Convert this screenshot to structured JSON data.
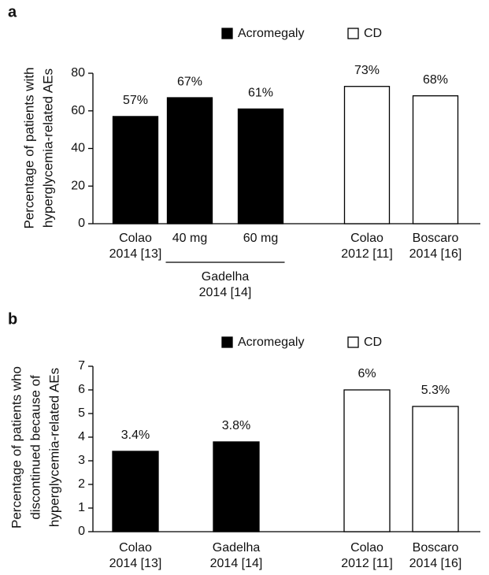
{
  "chart_data": [
    {
      "type": "bar",
      "panel_label": "a",
      "ylabel": [
        "Percentage of patients with",
        "hyperglycemia-related AEs"
      ],
      "categories": [
        [
          "Colao",
          "2014 [13]"
        ],
        [
          "40 mg"
        ],
        [
          "60 mg"
        ],
        [
          "Colao",
          "2012 [11]"
        ],
        [
          "Boscaro",
          "2014 [16]"
        ]
      ],
      "category_groups": [
        {
          "label": [
            "Gadelha",
            "2014 [14]"
          ],
          "start": 1,
          "end": 2
        }
      ],
      "series": [
        {
          "name": "Acromegaly",
          "color": "#000000",
          "values": [
            57,
            67,
            61,
            null,
            null
          ],
          "value_labels": [
            "57%",
            "67%",
            "61%",
            null,
            null
          ]
        },
        {
          "name": "CD",
          "color": "#ffffff",
          "values": [
            null,
            null,
            null,
            73,
            68
          ],
          "value_labels": [
            null,
            null,
            null,
            "73%",
            "68%"
          ]
        }
      ],
      "ylim": [
        0,
        80
      ],
      "yticks": [
        0,
        20,
        40,
        60,
        80
      ]
    },
    {
      "type": "bar",
      "panel_label": "b",
      "ylabel": [
        "Percentage of patients who",
        "discontinued because of",
        "hyperglycemia-related AEs"
      ],
      "categories": [
        [
          "Colao",
          "2014 [13]"
        ],
        [
          "Gadelha",
          "2014 [14]"
        ],
        [
          "Colao",
          "2012 [11]"
        ],
        [
          "Boscaro",
          "2014 [16]"
        ]
      ],
      "series": [
        {
          "name": "Acromegaly",
          "color": "#000000",
          "values": [
            3.4,
            3.8,
            null,
            null
          ],
          "value_labels": [
            "3.4%",
            "3.8%",
            null,
            null
          ]
        },
        {
          "name": "CD",
          "color": "#ffffff",
          "values": [
            null,
            null,
            6,
            5.3
          ],
          "value_labels": [
            null,
            null,
            "6%",
            "5.3%"
          ]
        }
      ],
      "ylim": [
        0,
        7
      ],
      "yticks": [
        0,
        1,
        2,
        3,
        4,
        5,
        6,
        7
      ]
    }
  ]
}
